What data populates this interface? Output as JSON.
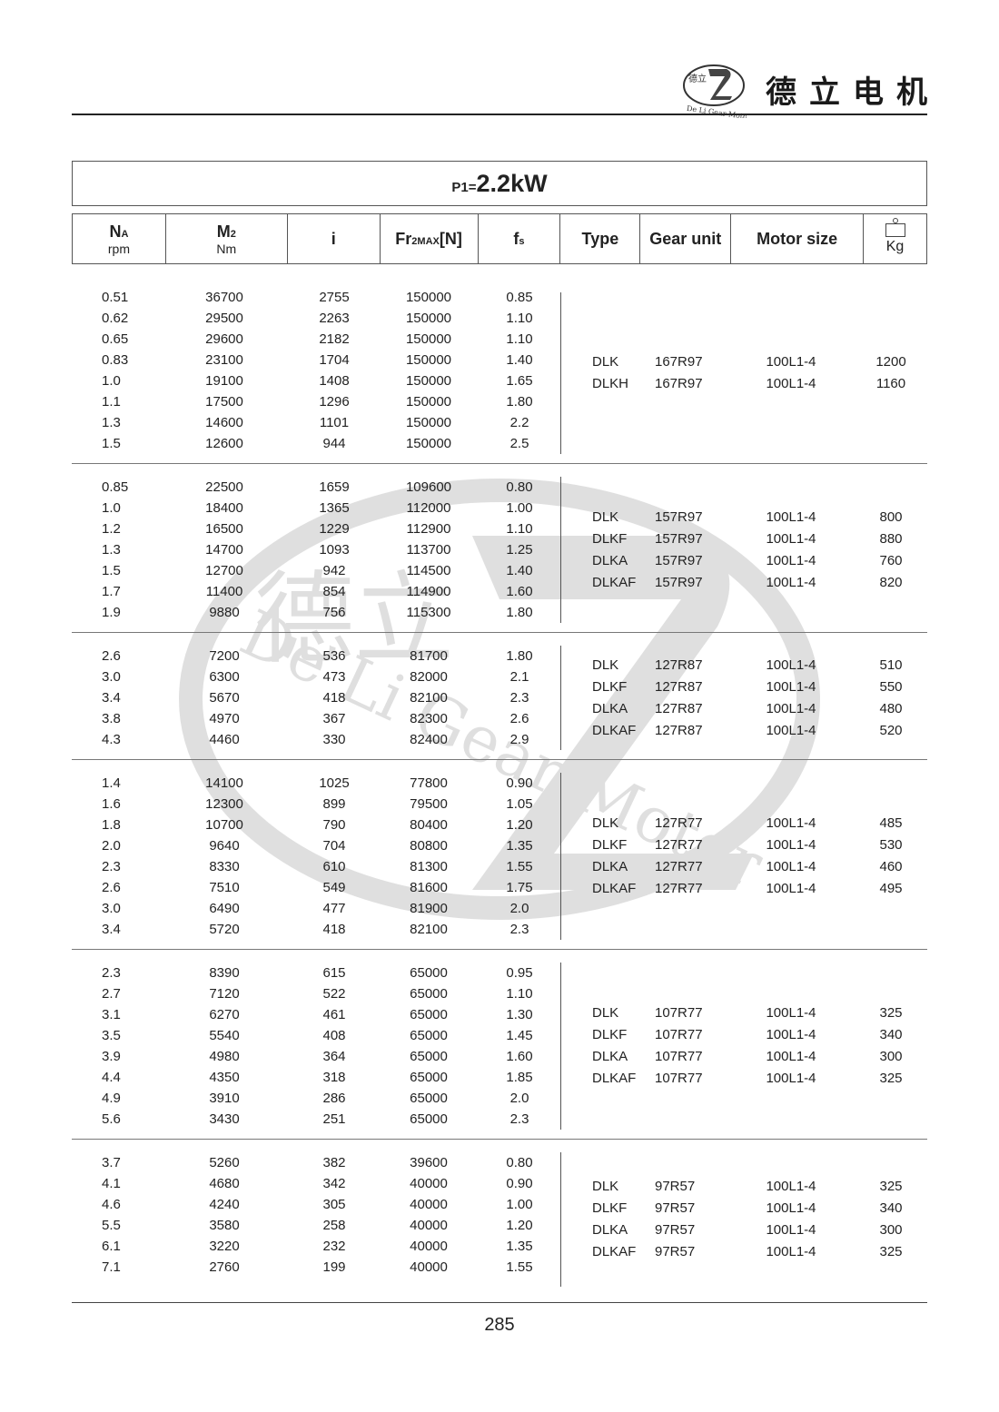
{
  "header": {
    "brand_name": "德立电机",
    "logo_text": "De Li Gear Motor",
    "logo_chars": "德立"
  },
  "watermark": {
    "text": "De Li Gear Motor",
    "chars": "德立"
  },
  "title": {
    "prefix": "P1=",
    "value": "2.2kW"
  },
  "columns": {
    "na": "NA",
    "na_unit": "rpm",
    "m2": "M2",
    "m2_unit": "Nm",
    "i": "i",
    "fr": "Fr2MAX[N]",
    "fs": "fs",
    "type": "Type",
    "gear_unit": "Gear unit",
    "motor_size": "Motor size",
    "weight": "Kg",
    "weight_icon": "weight-scale-icon"
  },
  "groups": [
    {
      "rows": [
        [
          "0.51",
          "36700",
          "2755",
          "150000",
          "0.85"
        ],
        [
          "0.62",
          "29500",
          "2263",
          "150000",
          "1.10"
        ],
        [
          "0.65",
          "29600",
          "2182",
          "150000",
          "1.10"
        ],
        [
          "0.83",
          "23100",
          "1704",
          "150000",
          "1.40"
        ],
        [
          "1.0",
          "19100",
          "1408",
          "150000",
          "1.65"
        ],
        [
          "1.1",
          "17500",
          "1296",
          "150000",
          "1.80"
        ],
        [
          "1.3",
          "14600",
          "1101",
          "150000",
          "2.2"
        ],
        [
          "1.5",
          "12600",
          "944",
          "150000",
          "2.5"
        ]
      ],
      "types": [
        [
          "DLK",
          "167R97",
          "100L1-4",
          "1200"
        ],
        [
          "DLKH",
          "167R97",
          "100L1-4",
          "1160"
        ]
      ]
    },
    {
      "rows": [
        [
          "0.85",
          "22500",
          "1659",
          "109600",
          "0.80"
        ],
        [
          "1.0",
          "18400",
          "1365",
          "112000",
          "1.00"
        ],
        [
          "1.2",
          "16500",
          "1229",
          "112900",
          "1.10"
        ],
        [
          "1.3",
          "14700",
          "1093",
          "113700",
          "1.25"
        ],
        [
          "1.5",
          "12700",
          "942",
          "114500",
          "1.40"
        ],
        [
          "1.7",
          "11400",
          "854",
          "114900",
          "1.60"
        ],
        [
          "1.9",
          "9880",
          "756",
          "115300",
          "1.80"
        ]
      ],
      "types": [
        [
          "DLK",
          "157R97",
          "100L1-4",
          "800"
        ],
        [
          "DLKF",
          "157R97",
          "100L1-4",
          "880"
        ],
        [
          "DLKA",
          "157R97",
          "100L1-4",
          "760"
        ],
        [
          "DLKAF",
          "157R97",
          "100L1-4",
          "820"
        ]
      ]
    },
    {
      "rows": [
        [
          "2.6",
          "7200",
          "536",
          "81700",
          "1.80"
        ],
        [
          "3.0",
          "6300",
          "473",
          "82000",
          "2.1"
        ],
        [
          "3.4",
          "5670",
          "418",
          "82100",
          "2.3"
        ],
        [
          "3.8",
          "4970",
          "367",
          "82300",
          "2.6"
        ],
        [
          "4.3",
          "4460",
          "330",
          "82400",
          "2.9"
        ]
      ],
      "types": [
        [
          "DLK",
          "127R87",
          "100L1-4",
          "510"
        ],
        [
          "DLKF",
          "127R87",
          "100L1-4",
          "550"
        ],
        [
          "DLKA",
          "127R87",
          "100L1-4",
          "480"
        ],
        [
          "DLKAF",
          "127R87",
          "100L1-4",
          "520"
        ]
      ]
    },
    {
      "rows": [
        [
          "1.4",
          "14100",
          "1025",
          "77800",
          "0.90"
        ],
        [
          "1.6",
          "12300",
          "899",
          "79500",
          "1.05"
        ],
        [
          "1.8",
          "10700",
          "790",
          "80400",
          "1.20"
        ],
        [
          "2.0",
          "9640",
          "704",
          "80800",
          "1.35"
        ],
        [
          "2.3",
          "8330",
          "610",
          "81300",
          "1.55"
        ],
        [
          "2.6",
          "7510",
          "549",
          "81600",
          "1.75"
        ],
        [
          "3.0",
          "6490",
          "477",
          "81900",
          "2.0"
        ],
        [
          "3.4",
          "5720",
          "418",
          "82100",
          "2.3"
        ]
      ],
      "types": [
        [
          "DLK",
          "127R77",
          "100L1-4",
          "485"
        ],
        [
          "DLKF",
          "127R77",
          "100L1-4",
          "530"
        ],
        [
          "DLKA",
          "127R77",
          "100L1-4",
          "460"
        ],
        [
          "DLKAF",
          "127R77",
          "100L1-4",
          "495"
        ]
      ]
    },
    {
      "rows": [
        [
          "2.3",
          "8390",
          "615",
          "65000",
          "0.95"
        ],
        [
          "2.7",
          "7120",
          "522",
          "65000",
          "1.10"
        ],
        [
          "3.1",
          "6270",
          "461",
          "65000",
          "1.30"
        ],
        [
          "3.5",
          "5540",
          "408",
          "65000",
          "1.45"
        ],
        [
          "3.9",
          "4980",
          "364",
          "65000",
          "1.60"
        ],
        [
          "4.4",
          "4350",
          "318",
          "65000",
          "1.85"
        ],
        [
          "4.9",
          "3910",
          "286",
          "65000",
          "2.0"
        ],
        [
          "5.6",
          "3430",
          "251",
          "65000",
          "2.3"
        ]
      ],
      "types": [
        [
          "DLK",
          "107R77",
          "100L1-4",
          "325"
        ],
        [
          "DLKF",
          "107R77",
          "100L1-4",
          "340"
        ],
        [
          "DLKA",
          "107R77",
          "100L1-4",
          "300"
        ],
        [
          "DLKAF",
          "107R77",
          "100L1-4",
          "325"
        ]
      ]
    },
    {
      "rows": [
        [
          "3.7",
          "5260",
          "382",
          "39600",
          "0.80"
        ],
        [
          "4.1",
          "4680",
          "342",
          "40000",
          "0.90"
        ],
        [
          "4.6",
          "4240",
          "305",
          "40000",
          "1.00"
        ],
        [
          "5.5",
          "3580",
          "258",
          "40000",
          "1.20"
        ],
        [
          "6.1",
          "3220",
          "232",
          "40000",
          "1.35"
        ],
        [
          "7.1",
          "2760",
          "199",
          "40000",
          "1.55"
        ]
      ],
      "types": [
        [
          "DLK",
          "97R57",
          "100L1-4",
          "325"
        ],
        [
          "DLKF",
          "97R57",
          "100L1-4",
          "340"
        ],
        [
          "DLKA",
          "97R57",
          "100L1-4",
          "300"
        ],
        [
          "DLKAF",
          "97R57",
          "100L1-4",
          "325"
        ]
      ]
    }
  ],
  "footer": {
    "page_number": "285"
  }
}
